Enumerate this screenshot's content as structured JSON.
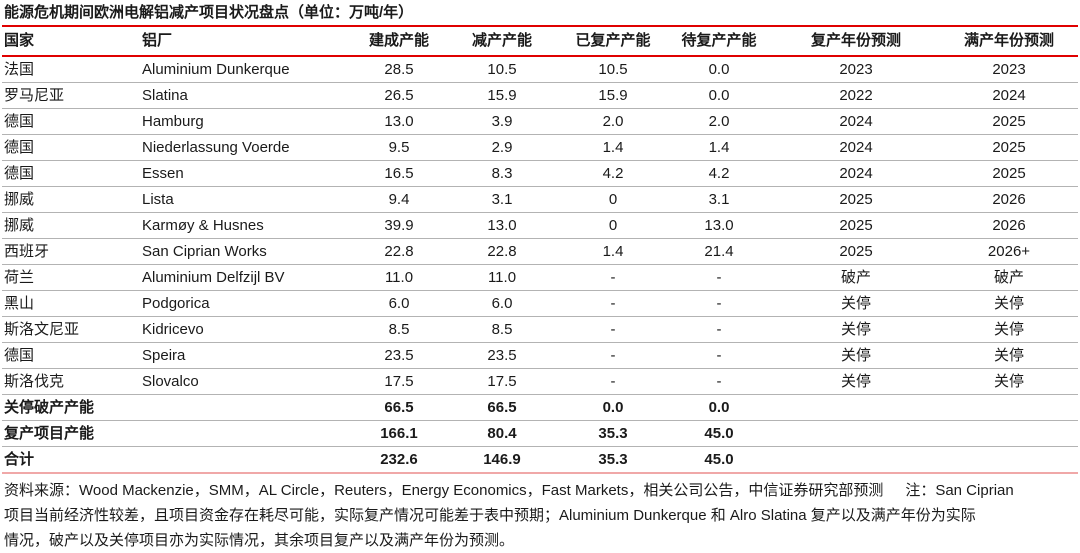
{
  "title": "能源危机期间欧洲电解铝减产项目状况盘点（单位：万吨/年）",
  "table": {
    "columns": [
      "国家",
      "铝厂",
      "建成产能",
      "减产产能",
      "已复产产能",
      "待复产产能",
      "复产年份预测",
      "满产年份预测"
    ],
    "rows": [
      [
        "法国",
        "Aluminium Dunkerque",
        "28.5",
        "10.5",
        "10.5",
        "0.0",
        "2023",
        "2023"
      ],
      [
        "罗马尼亚",
        "Slatina",
        "26.5",
        "15.9",
        "15.9",
        "0.0",
        "2022",
        "2024"
      ],
      [
        "德国",
        "Hamburg",
        "13.0",
        "3.9",
        "2.0",
        "2.0",
        "2024",
        "2025"
      ],
      [
        "德国",
        "Niederlassung Voerde",
        "9.5",
        "2.9",
        "1.4",
        "1.4",
        "2024",
        "2025"
      ],
      [
        "德国",
        "Essen",
        "16.5",
        "8.3",
        "4.2",
        "4.2",
        "2024",
        "2025"
      ],
      [
        "挪威",
        "Lista",
        "9.4",
        "3.1",
        "0",
        "3.1",
        "2025",
        "2026"
      ],
      [
        "挪威",
        "Karmøy & Husnes",
        "39.9",
        "13.0",
        "0",
        "13.0",
        "2025",
        "2026"
      ],
      [
        "西班牙",
        "San Ciprian Works",
        "22.8",
        "22.8",
        "1.4",
        "21.4",
        "2025",
        "2026+"
      ],
      [
        "荷兰",
        "Aluminium Delfzijl BV",
        "11.0",
        "11.0",
        "-",
        "-",
        "破产",
        "破产"
      ],
      [
        "黑山",
        "Podgorica",
        "6.0",
        "6.0",
        "-",
        "-",
        "关停",
        "关停"
      ],
      [
        "斯洛文尼亚",
        "Kidricevo",
        "8.5",
        "8.5",
        "-",
        "-",
        "关停",
        "关停"
      ],
      [
        "德国",
        "Speira",
        "23.5",
        "23.5",
        "-",
        "-",
        "关停",
        "关停"
      ],
      [
        "斯洛伐克",
        "Slovalco",
        "17.5",
        "17.5",
        "-",
        "-",
        "关停",
        "关停"
      ]
    ],
    "summary_rows": [
      {
        "label": "关停破产产能",
        "values": [
          "66.5",
          "66.5",
          "0.0",
          "0.0",
          "",
          ""
        ]
      },
      {
        "label": "复产项目产能",
        "values": [
          "166.1",
          "80.4",
          "35.3",
          "45.0",
          "",
          ""
        ]
      },
      {
        "label": "合计",
        "values": [
          "232.6",
          "146.9",
          "35.3",
          "45.0",
          "",
          ""
        ]
      }
    ]
  },
  "footnote": {
    "source": "资料来源：Wood Mackenzie，SMM，AL Circle，Reuters，Energy Economics，Fast Markets，相关公司公告，中信证券研究部预测",
    "note_line1": "注：San Ciprian",
    "line2": "项目当前经济性较差，且项目资金存在耗尽可能，实际复产情况可能差于表中预期；Aluminium Dunkerque 和 Alro Slatina 复产以及满产年份为实际",
    "line3": "情况，破产以及关停项目亦为实际情况，其余项目复产以及满产年份为预测。"
  },
  "colors": {
    "accent_red": "#e00000",
    "bottom_rule": "#f0a8a8",
    "row_rule": "#b3b3b3",
    "text": "#1a1a1a"
  }
}
